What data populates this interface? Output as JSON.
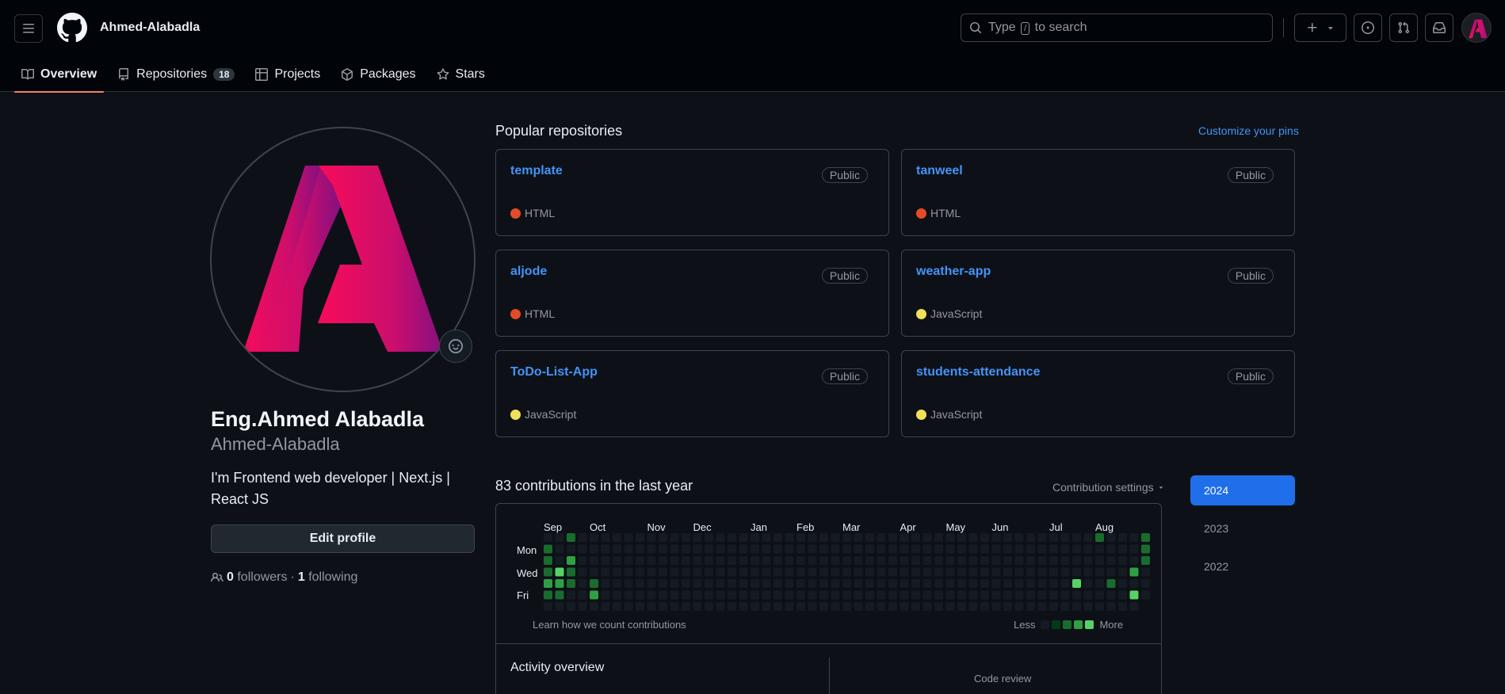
{
  "header": {
    "username": "Ahmed-Alabadla",
    "search_prefix": "Type",
    "search_key": "/",
    "search_suffix": "to search"
  },
  "tabs": [
    {
      "label": "Overview",
      "icon": "book-icon",
      "active": true
    },
    {
      "label": "Repositories",
      "icon": "repo-icon",
      "count": "18"
    },
    {
      "label": "Projects",
      "icon": "table-icon"
    },
    {
      "label": "Packages",
      "icon": "package-icon"
    },
    {
      "label": "Stars",
      "icon": "star-icon"
    }
  ],
  "profile": {
    "name": "Eng.Ahmed Alabadla",
    "login": "Ahmed-Alabadla",
    "bio": "I'm Frontend web developer | Next.js | React JS",
    "edit_label": "Edit profile",
    "followers_count": "0",
    "followers_label": "followers",
    "separator": "·",
    "following_count": "1",
    "following_label": "following"
  },
  "popular": {
    "title": "Popular repositories",
    "customize": "Customize your pins",
    "repos": [
      {
        "name": "template",
        "visibility": "Public",
        "language": "HTML",
        "color": "#e34c26"
      },
      {
        "name": "tanweel",
        "visibility": "Public",
        "language": "HTML",
        "color": "#e34c26"
      },
      {
        "name": "aljode",
        "visibility": "Public",
        "language": "HTML",
        "color": "#e34c26"
      },
      {
        "name": "weather-app",
        "visibility": "Public",
        "language": "JavaScript",
        "color": "#f1e05a"
      },
      {
        "name": "ToDo-List-App",
        "visibility": "Public",
        "language": "JavaScript",
        "color": "#f1e05a"
      },
      {
        "name": "students-attendance",
        "visibility": "Public",
        "language": "JavaScript",
        "color": "#f1e05a"
      }
    ]
  },
  "contributions": {
    "title": "83 contributions in the last year",
    "settings": "Contribution settings",
    "months": [
      "Sep",
      "Oct",
      "Nov",
      "Dec",
      "Jan",
      "Feb",
      "Mar",
      "Apr",
      "May",
      "Jun",
      "Jul",
      "Aug"
    ],
    "days": [
      "Mon",
      "Wed",
      "Fri"
    ],
    "learn": "Learn how we count contributions",
    "less": "Less",
    "more": "More",
    "colors": [
      "#151b23",
      "#033a16",
      "#196c2e",
      "#2ea043",
      "#56d364"
    ],
    "active_cells": [
      [
        0,
        1,
        2
      ],
      [
        0,
        2,
        2
      ],
      [
        0,
        3,
        2
      ],
      [
        0,
        4,
        3
      ],
      [
        0,
        5,
        2
      ],
      [
        1,
        3,
        4
      ],
      [
        1,
        4,
        3
      ],
      [
        1,
        5,
        2
      ],
      [
        2,
        0,
        2
      ],
      [
        2,
        2,
        3
      ],
      [
        2,
        3,
        2
      ],
      [
        2,
        4,
        2
      ],
      [
        4,
        4,
        2
      ],
      [
        4,
        5,
        3
      ],
      [
        46,
        4,
        4
      ],
      [
        48,
        0,
        2
      ],
      [
        49,
        4,
        2
      ],
      [
        51,
        3,
        3
      ],
      [
        51,
        5,
        4
      ],
      [
        52,
        0,
        2
      ],
      [
        52,
        1,
        2
      ],
      [
        52,
        2,
        2
      ],
      [
        54,
        0,
        2
      ]
    ]
  },
  "activity": {
    "title": "Activity overview",
    "code_review": "Code review"
  },
  "years": [
    "2024",
    "2023",
    "2022"
  ]
}
